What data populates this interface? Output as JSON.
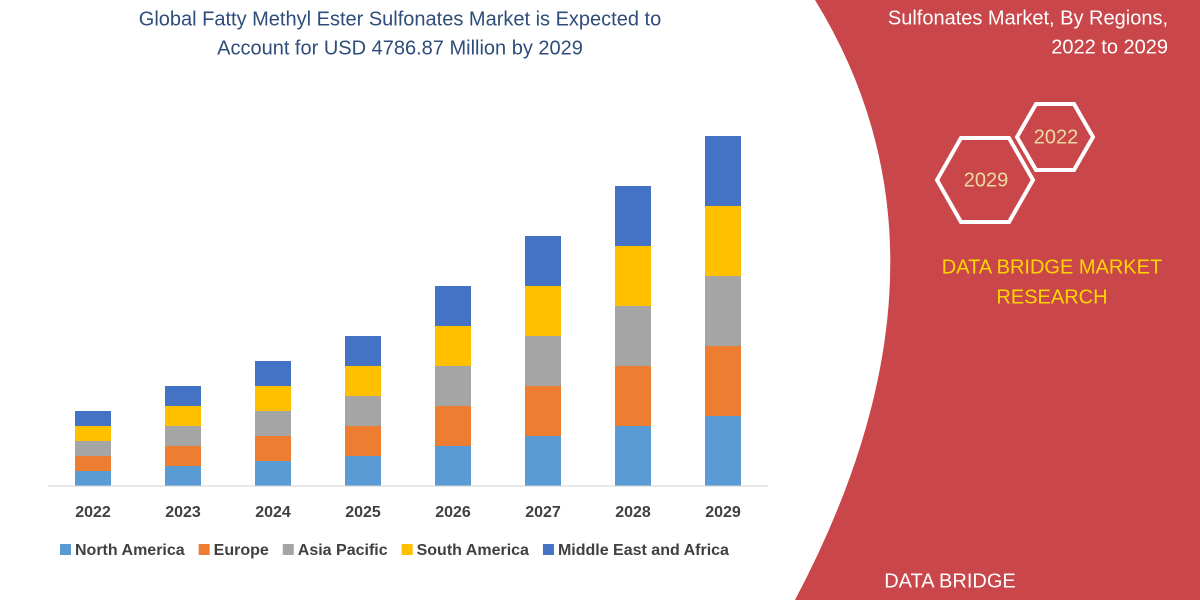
{
  "chart_data": {
    "type": "stacked-bar",
    "title": [
      "Global Fatty Methyl Ester Sulfonates Market is Expected to",
      "Account for USD 4786.87 Million by 2029"
    ],
    "categories": [
      "2022",
      "2023",
      "2024",
      "2025",
      "2026",
      "2027",
      "2028",
      "2029"
    ],
    "series": [
      {
        "name": "North America",
        "color": "#5b9bd5",
        "values": [
          15,
          20,
          25,
          30,
          40,
          50,
          60,
          70
        ]
      },
      {
        "name": "Europe",
        "color": "#ed7d31",
        "values": [
          15,
          20,
          25,
          30,
          40,
          50,
          60,
          70
        ]
      },
      {
        "name": "Asia Pacific",
        "color": "#a5a5a5",
        "values": [
          15,
          20,
          25,
          30,
          40,
          50,
          60,
          70
        ]
      },
      {
        "name": "South America",
        "color": "#ffc000",
        "values": [
          15,
          20,
          25,
          30,
          40,
          50,
          60,
          70
        ]
      },
      {
        "name": "Middle East and Africa",
        "color": "#4472c4",
        "values": [
          15,
          20,
          25,
          30,
          40,
          50,
          60,
          70
        ]
      }
    ],
    "ylim": [
      0,
      350
    ]
  },
  "side_panel": {
    "title": [
      "Sulfonates Market, By Regions,",
      "2022 to 2029"
    ],
    "hex_labels": [
      "2022",
      "2029"
    ],
    "brand": [
      "DATA BRIDGE MARKET",
      "RESEARCH"
    ],
    "logo": "DATA BRIDGE"
  }
}
